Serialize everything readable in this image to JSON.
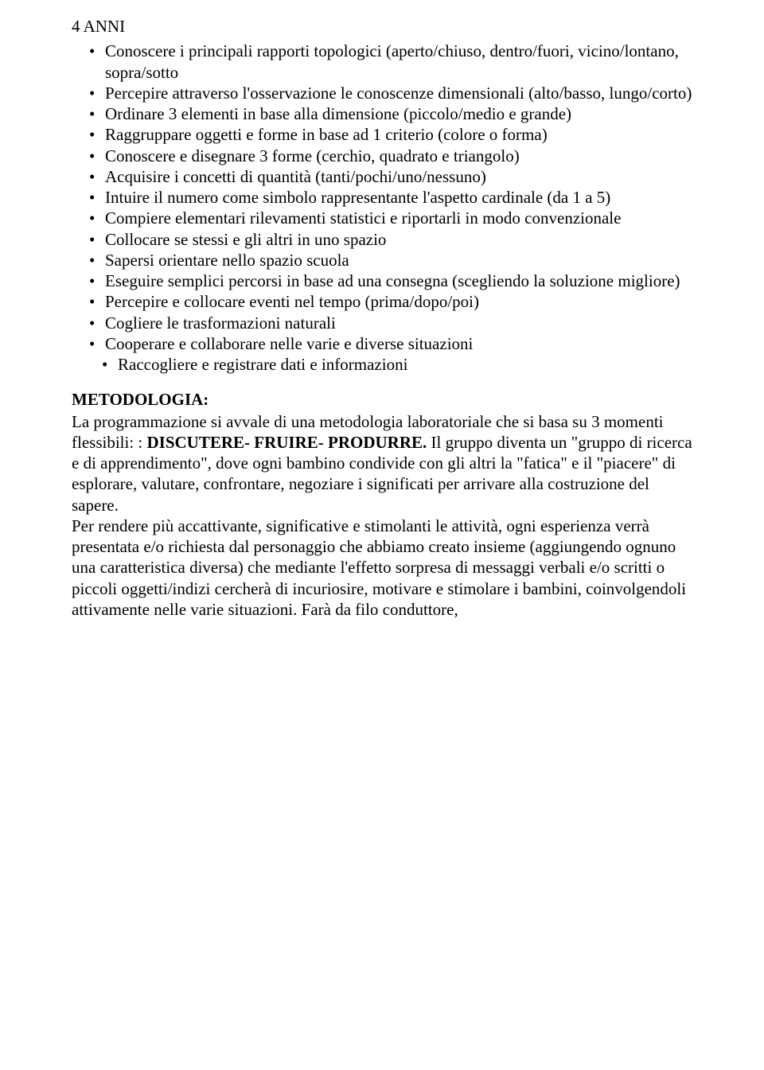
{
  "heading": "4 ANNI",
  "bullets": [
    "Conoscere i principali rapporti topologici (aperto/chiuso, dentro/fuori, vicino/lontano, sopra/sotto",
    "Percepire attraverso l'osservazione le conoscenze dimensionali (alto/basso, lungo/corto)",
    "Ordinare 3 elementi  in base alla dimensione (piccolo/medio e grande)",
    "Raggruppare oggetti e forme in base  ad 1 criterio (colore o forma)",
    "Conoscere e disegnare 3 forme (cerchio, quadrato e triangolo)",
    "Acquisire i concetti di quantità (tanti/pochi/uno/nessuno)",
    "Intuire il numero come simbolo rappresentante l'aspetto cardinale (da 1 a 5)",
    "Compiere elementari rilevamenti statistici e riportarli in modo convenzionale",
    "Collocare se stessi e gli altri in uno spazio",
    "Sapersi orientare nello spazio scuola",
    "Eseguire semplici percorsi in base ad una consegna (scegliendo la soluzione migliore)",
    "Percepire e collocare eventi nel tempo (prima/dopo/poi)",
    "Cogliere le trasformazioni naturali",
    "Cooperare e collaborare nelle varie e diverse situazioni",
    "Raccogliere e registrare dati e informazioni"
  ],
  "methodology": {
    "title": "METODOLOGIA:",
    "p1_a": "La programmazione si avvale di una metodologia laboratoriale che si basa su 3 momenti flessibili: : ",
    "p1_bold": "DISCUTERE- FRUIRE- PRODURRE. ",
    "p1_b": "Il gruppo diventa un \"gruppo di ricerca e di apprendimento\", dove ogni bambino condivide con gli altri la \"fatica\" e il \"piacere\" di esplorare, valutare, confrontare, negoziare i significati per arrivare alla costruzione del sapere.",
    "p2": "Per rendere più accattivante,  significative e stimolanti le attività, ogni esperienza verrà presentata e/o richiesta dal  personaggio che abbiamo creato insieme (aggiungendo ognuno una caratteristica diversa) che mediante l'effetto sorpresa di messaggi verbali e/o scritti o piccoli oggetti/indizi cercherà di  incuriosire,  motivare e stimolare i bambini, coinvolgendoli attivamente nelle varie situazioni. Farà da filo conduttore,"
  }
}
